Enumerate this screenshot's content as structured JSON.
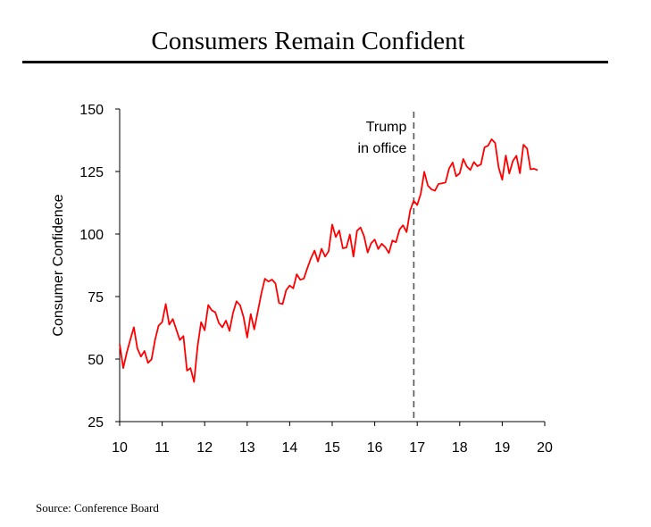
{
  "header": {
    "title": "Consumers Remain Confident"
  },
  "footer": {
    "source": "Source: Conference Board"
  },
  "chart_data": {
    "type": "line",
    "title": "Consumers Remain Confident",
    "xlabel": "",
    "ylabel": "Consumer Confidence",
    "xlim": [
      10,
      20
    ],
    "ylim": [
      25,
      150
    ],
    "x_ticks": [
      "10",
      "11",
      "12",
      "13",
      "14",
      "15",
      "16",
      "17",
      "18",
      "19",
      "20"
    ],
    "y_ticks": [
      "150",
      "125",
      "100",
      "75",
      "50",
      "25"
    ],
    "grid": false,
    "color": "#ff0000",
    "annotation": {
      "x": 16.92,
      "label_lines": [
        "Trump",
        "in office"
      ],
      "style": "dashed-vertical-line"
    },
    "series": [
      {
        "x": [
          10.0,
          10.083,
          10.167,
          10.25,
          10.333,
          10.417,
          10.5,
          10.583,
          10.667,
          10.75,
          10.833,
          10.917,
          11.0,
          11.083,
          11.167,
          11.25,
          11.333,
          11.417,
          11.5,
          11.583,
          11.667,
          11.75,
          11.833,
          11.917,
          12.0,
          12.083,
          12.167,
          12.25,
          12.333,
          12.417,
          12.5,
          12.583,
          12.667,
          12.75,
          12.833,
          12.917,
          13.0,
          13.083,
          13.167,
          13.25,
          13.333,
          13.417,
          13.5,
          13.583,
          13.667,
          13.75,
          13.833,
          13.917,
          14.0,
          14.083,
          14.167,
          14.25,
          14.333,
          14.417,
          14.5,
          14.583,
          14.667,
          14.75,
          14.833,
          14.917,
          15.0,
          15.083,
          15.167,
          15.25,
          15.333,
          15.417,
          15.5,
          15.583,
          15.667,
          15.75,
          15.833,
          15.917,
          16.0,
          16.083,
          16.167,
          16.25,
          16.333,
          16.417,
          16.5,
          16.583,
          16.667,
          16.75,
          16.833,
          16.917,
          17.0,
          17.083,
          17.167,
          17.25,
          17.333,
          17.417,
          17.5,
          17.583,
          17.667,
          17.75,
          17.833,
          17.917,
          18.0,
          18.083,
          18.167,
          18.25,
          18.333,
          18.417,
          18.5,
          18.583,
          18.667,
          18.75,
          18.833,
          18.917,
          19.0,
          19.083,
          19.167,
          19.25,
          19.333,
          19.417,
          19.5,
          19.583,
          19.667,
          19.75,
          19.833
        ],
        "values": [
          56,
          46.4,
          52.5,
          57.7,
          62.7,
          54.3,
          51,
          53.2,
          48.5,
          49.9,
          57.8,
          63.4,
          64.8,
          72,
          63.8,
          66,
          61.7,
          57.6,
          59.2,
          45.4,
          46.4,
          40.9,
          55.2,
          64.8,
          61.5,
          71.6,
          69.5,
          68.7,
          64.4,
          62.7,
          65.4,
          61.3,
          68.4,
          73.1,
          71.5,
          66.7,
          58.6,
          68,
          61.9,
          69,
          76.2,
          82.1,
          81,
          81.8,
          80.2,
          72.4,
          72,
          77.5,
          79.4,
          78.3,
          83.9,
          81.7,
          82.2,
          86.4,
          90.3,
          93.4,
          89,
          94.1,
          91,
          93.1,
          103.8,
          98.8,
          101.4,
          94.3,
          94.6,
          99.8,
          91,
          101.3,
          102.6,
          99.1,
          92.6,
          96.3,
          97.8,
          94,
          96.1,
          94.7,
          92.4,
          97.4,
          96.7,
          101.8,
          103.5,
          100.8,
          109.4,
          113.3,
          111.6,
          116.1,
          124.9,
          119.4,
          117.9,
          117.3,
          120,
          120.3,
          120.6,
          126.2,
          128.6,
          123.1,
          124.3,
          130,
          127,
          125.6,
          128.8,
          127.1,
          127.9,
          134.7,
          135.3,
          137.9,
          136.4,
          126.6,
          121.7,
          131.4,
          124.2,
          129.2,
          131.3,
          124.3,
          135.7,
          134.2,
          125.9,
          126.1,
          125.5
        ]
      }
    ]
  }
}
